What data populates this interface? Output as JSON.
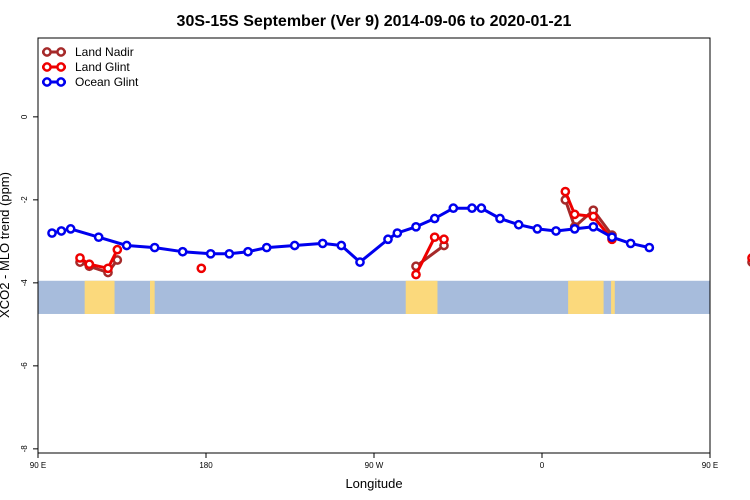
{
  "chart_data": {
    "type": "line",
    "title": "30S-15S September (Ver 9)   2014-09-06 to 2020-01-21",
    "xlabel": "Longitude",
    "ylabel": "XCO2 - MLO trend (ppm)",
    "xlim": [
      90,
      450
    ],
    "ylim": [
      -8.1,
      1.9
    ],
    "x_ticks": [
      {
        "value": 90,
        "label": "90 E"
      },
      {
        "value": 180,
        "label": "180"
      },
      {
        "value": 270,
        "label": "90 W"
      },
      {
        "value": 360,
        "label": "0"
      },
      {
        "value": 450,
        "label": "90 E"
      },
      {
        "value": 540,
        "label": "180"
      }
    ],
    "y_ticks": [
      {
        "value": 0,
        "label": "0"
      },
      {
        "value": -2,
        "label": "-2"
      },
      {
        "value": -4,
        "label": "-4"
      },
      {
        "value": -6,
        "label": "-6"
      },
      {
        "value": -8,
        "label": "-8"
      }
    ],
    "legend_position": "top-left",
    "map_band": {
      "lat_range": "30S-15S",
      "y_range": [
        -4.75,
        -3.95
      ],
      "ocean_color": "#a7bcdc",
      "land_color": "#fbd97c",
      "land_segments": [
        [
          115,
          131
        ],
        [
          150,
          152.5
        ],
        [
          287,
          304
        ],
        [
          374,
          393
        ],
        [
          397,
          399
        ],
        [
          477,
          502
        ],
        [
          506,
          508
        ]
      ]
    },
    "series": [
      {
        "name": "Land Nadir",
        "color": "#a52a2a",
        "segments": [
          [
            [
              112.5,
              -3.5
            ],
            [
              117.5,
              -3.6
            ],
            [
              127.5,
              -3.75
            ],
            [
              132.5,
              -3.45
            ]
          ],
          [
            [
              292.5,
              -3.6
            ],
            [
              307.5,
              -3.1
            ]
          ],
          [
            [
              372.5,
              -2.0
            ],
            [
              377.5,
              -2.65
            ],
            [
              387.5,
              -2.25
            ],
            [
              397.5,
              -2.85
            ]
          ],
          [
            [
              472.5,
              -3.5
            ],
            [
              477.5,
              -3.6
            ],
            [
              487.5,
              -3.75
            ],
            [
              492.5,
              -3.45
            ]
          ]
        ]
      },
      {
        "name": "Land Glint",
        "color": "#ee0000",
        "segments": [
          [
            [
              112.5,
              -3.4
            ],
            [
              117.5,
              -3.55
            ],
            [
              127.5,
              -3.65
            ],
            [
              132.5,
              -3.2
            ]
          ],
          [
            [
              177.5,
              -3.65
            ]
          ],
          [
            [
              292.5,
              -3.8
            ],
            [
              302.5,
              -2.9
            ],
            [
              307.5,
              -2.95
            ]
          ],
          [
            [
              372.5,
              -1.8
            ],
            [
              377.5,
              -2.35
            ],
            [
              387.5,
              -2.4
            ],
            [
              397.5,
              -2.95
            ]
          ],
          [
            [
              472.5,
              -3.4
            ],
            [
              477.5,
              -3.55
            ],
            [
              487.5,
              -3.65
            ],
            [
              492.5,
              -3.2
            ]
          ]
        ]
      },
      {
        "name": "Ocean Glint",
        "color": "#0000ee",
        "segments": [
          [
            [
              97.5,
              -2.8
            ],
            [
              102.5,
              -2.75
            ],
            [
              107.5,
              -2.7
            ],
            [
              122.5,
              -2.9
            ],
            [
              137.5,
              -3.1
            ],
            [
              152.5,
              -3.15
            ],
            [
              167.5,
              -3.25
            ],
            [
              182.5,
              -3.3
            ],
            [
              192.5,
              -3.3
            ],
            [
              202.5,
              -3.25
            ],
            [
              212.5,
              -3.15
            ],
            [
              227.5,
              -3.1
            ],
            [
              242.5,
              -3.05
            ],
            [
              252.5,
              -3.1
            ],
            [
              262.5,
              -3.5
            ],
            [
              277.5,
              -2.95
            ],
            [
              282.5,
              -2.8
            ],
            [
              292.5,
              -2.65
            ],
            [
              302.5,
              -2.45
            ],
            [
              312.5,
              -2.2
            ],
            [
              322.5,
              -2.2
            ],
            [
              327.5,
              -2.2
            ],
            [
              337.5,
              -2.45
            ],
            [
              347.5,
              -2.6
            ],
            [
              357.5,
              -2.7
            ],
            [
              367.5,
              -2.75
            ],
            [
              377.5,
              -2.7
            ],
            [
              387.5,
              -2.65
            ],
            [
              397.5,
              -2.9
            ],
            [
              407.5,
              -3.05
            ],
            [
              417.5,
              -3.15
            ]
          ]
        ]
      }
    ]
  }
}
